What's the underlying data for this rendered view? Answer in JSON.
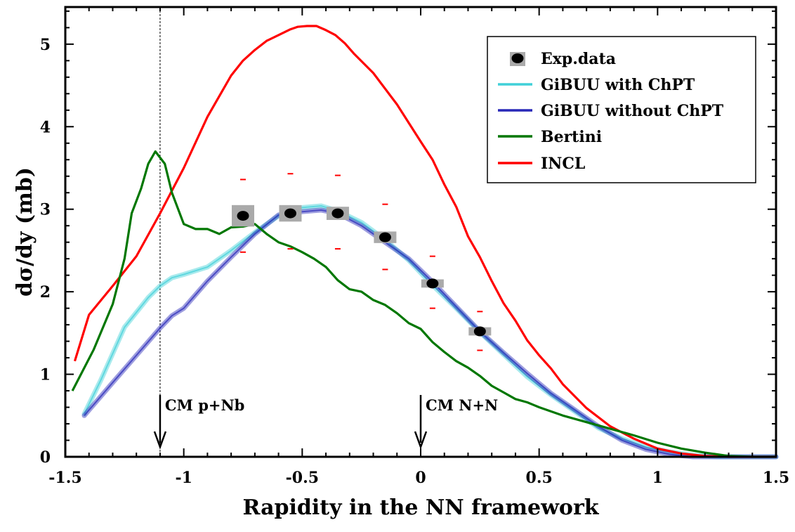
{
  "chart_data": {
    "type": "line",
    "title": "",
    "xlabel": "Rapidity in the NN framework",
    "ylabel": "dσ/dy (mb)",
    "xlim": [
      -1.5,
      1.5
    ],
    "ylim": [
      0,
      5.45
    ],
    "xticks": [
      -1.5,
      -1,
      -0.5,
      0,
      0.5,
      1,
      1.5
    ],
    "xtick_labels": [
      "-1.5",
      "-1",
      "-0.5",
      "0",
      "0.5",
      "1",
      "1.5"
    ],
    "yticks": [
      0,
      1,
      2,
      3,
      4,
      5
    ],
    "ytick_labels": [
      "0",
      "1",
      "2",
      "3",
      "4",
      "5"
    ],
    "legend_position": "top-right",
    "legend": [
      {
        "key": "exp",
        "label": "Exp.data"
      },
      {
        "key": "gibuu_chpt",
        "label": "GiBUU with ChPT"
      },
      {
        "key": "gibuu_no_chpt",
        "label": "GiBUU without ChPT"
      },
      {
        "key": "bertini",
        "label": "Bertini"
      },
      {
        "key": "incl",
        "label": "INCL"
      }
    ],
    "series": [
      {
        "key": "incl",
        "name": "INCL",
        "color": "#ff0000",
        "x": [
          -1.46,
          -1.4,
          -1.3,
          -1.2,
          -1.1,
          -1.0,
          -0.9,
          -0.8,
          -0.75,
          -0.7,
          -0.65,
          -0.6,
          -0.55,
          -0.52,
          -0.48,
          -0.44,
          -0.4,
          -0.36,
          -0.32,
          -0.28,
          -0.2,
          -0.1,
          0.0,
          0.05,
          0.1,
          0.15,
          0.2,
          0.25,
          0.3,
          0.35,
          0.4,
          0.45,
          0.5,
          0.55,
          0.6,
          0.7,
          0.8,
          0.9,
          1.0,
          1.1,
          1.2,
          1.3,
          1.4,
          1.5
        ],
        "y": [
          1.16,
          1.72,
          2.07,
          2.43,
          2.95,
          3.5,
          4.12,
          4.62,
          4.8,
          4.93,
          5.04,
          5.11,
          5.18,
          5.21,
          5.22,
          5.22,
          5.17,
          5.11,
          5.01,
          4.88,
          4.65,
          4.27,
          3.82,
          3.6,
          3.3,
          3.03,
          2.67,
          2.42,
          2.13,
          1.86,
          1.65,
          1.41,
          1.23,
          1.07,
          0.88,
          0.59,
          0.37,
          0.22,
          0.1,
          0.04,
          0.01,
          0.0,
          0.0,
          0.0
        ]
      },
      {
        "key": "bertini",
        "name": "Bertini",
        "color": "#007700",
        "x": [
          -1.47,
          -1.38,
          -1.3,
          -1.25,
          -1.22,
          -1.18,
          -1.15,
          -1.12,
          -1.08,
          -1.05,
          -1.0,
          -0.95,
          -0.9,
          -0.85,
          -0.8,
          -0.75,
          -0.7,
          -0.65,
          -0.6,
          -0.55,
          -0.5,
          -0.45,
          -0.4,
          -0.35,
          -0.3,
          -0.25,
          -0.2,
          -0.15,
          -0.1,
          -0.05,
          0.0,
          0.05,
          0.1,
          0.15,
          0.2,
          0.25,
          0.3,
          0.35,
          0.4,
          0.45,
          0.5,
          0.6,
          0.7,
          0.8,
          0.9,
          1.0,
          1.1,
          1.2,
          1.3,
          1.4,
          1.5
        ],
        "y": [
          0.8,
          1.3,
          1.85,
          2.4,
          2.95,
          3.25,
          3.55,
          3.7,
          3.55,
          3.2,
          2.82,
          2.76,
          2.76,
          2.7,
          2.78,
          2.79,
          2.82,
          2.7,
          2.6,
          2.55,
          2.48,
          2.4,
          2.3,
          2.14,
          2.03,
          2.0,
          1.9,
          1.84,
          1.74,
          1.62,
          1.55,
          1.39,
          1.27,
          1.16,
          1.08,
          0.98,
          0.86,
          0.78,
          0.7,
          0.66,
          0.6,
          0.5,
          0.42,
          0.34,
          0.26,
          0.17,
          0.1,
          0.05,
          0.01,
          0.0,
          0.0
        ]
      },
      {
        "key": "gibuu_chpt",
        "name": "GiBUU with ChPT",
        "color": "#40d0d8",
        "band": true,
        "x": [
          -1.42,
          -1.35,
          -1.25,
          -1.15,
          -1.1,
          -1.05,
          -1.0,
          -0.9,
          -0.8,
          -0.7,
          -0.6,
          -0.5,
          -0.42,
          -0.35,
          -0.25,
          -0.15,
          -0.05,
          0.05,
          0.15,
          0.25,
          0.35,
          0.45,
          0.55,
          0.65,
          0.75,
          0.85,
          0.95,
          1.05,
          1.15,
          1.25,
          1.4,
          1.5
        ],
        "y": [
          0.52,
          0.93,
          1.57,
          1.93,
          2.07,
          2.17,
          2.21,
          2.3,
          2.5,
          2.72,
          2.92,
          3.02,
          3.04,
          2.98,
          2.84,
          2.63,
          2.38,
          2.08,
          1.8,
          1.51,
          1.24,
          0.97,
          0.75,
          0.55,
          0.35,
          0.22,
          0.12,
          0.06,
          0.02,
          0.0,
          0.0,
          0.0
        ]
      },
      {
        "key": "gibuu_no_chpt",
        "name": "GiBUU without ChPT",
        "color": "#2828b8",
        "band": true,
        "x": [
          -1.42,
          -1.3,
          -1.2,
          -1.1,
          -1.05,
          -1.0,
          -0.9,
          -0.8,
          -0.7,
          -0.6,
          -0.5,
          -0.42,
          -0.35,
          -0.25,
          -0.15,
          -0.05,
          0.05,
          0.15,
          0.25,
          0.35,
          0.45,
          0.55,
          0.65,
          0.75,
          0.85,
          0.95,
          1.05,
          1.15,
          1.25,
          1.4,
          1.5
        ],
        "y": [
          0.5,
          0.9,
          1.23,
          1.56,
          1.71,
          1.8,
          2.13,
          2.42,
          2.7,
          2.93,
          2.97,
          2.99,
          2.95,
          2.8,
          2.6,
          2.4,
          2.12,
          1.82,
          1.52,
          1.26,
          1.01,
          0.77,
          0.57,
          0.37,
          0.2,
          0.09,
          0.03,
          0.0,
          0.0,
          0.0,
          0.0
        ]
      }
    ],
    "exp_data": {
      "name": "Exp.data",
      "x": [
        -0.75,
        -0.55,
        -0.35,
        -0.15,
        0.05,
        0.25
      ],
      "y": [
        2.92,
        2.95,
        2.95,
        2.66,
        2.1,
        1.52
      ],
      "err_upper": [
        3.36,
        3.43,
        3.41,
        3.06,
        2.43,
        1.76
      ],
      "err_lower": [
        2.48,
        2.52,
        2.52,
        2.27,
        1.8,
        1.29
      ],
      "sys_box_half_height": [
        0.13,
        0.1,
        0.08,
        0.07,
        0.05,
        0.05
      ]
    },
    "annotations": [
      {
        "label": "CM p+Nb",
        "x": -1.1
      },
      {
        "label": "CM N+N",
        "x": 0.0
      }
    ],
    "reference_line_x": -1.1
  }
}
